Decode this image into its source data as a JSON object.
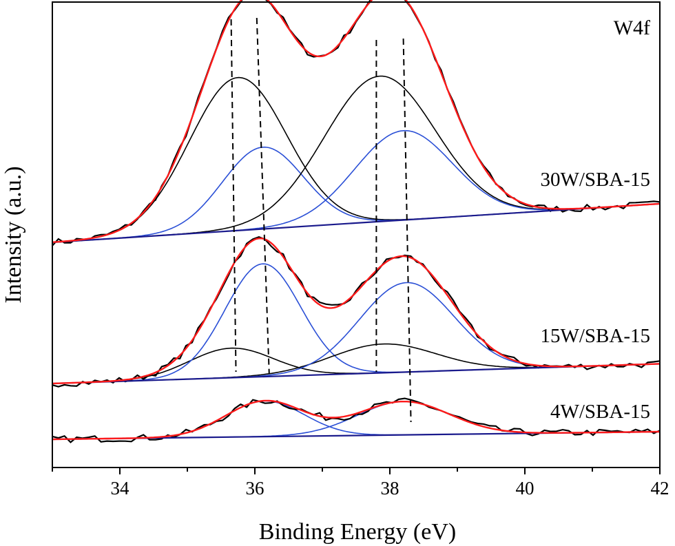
{
  "chart_data": {
    "type": "line",
    "title": "",
    "panel_label": "W4f",
    "xlabel": "Binding Energy (eV)",
    "ylabel": "Intensity (a.u.)",
    "xlim": [
      33,
      42
    ],
    "x_ticks": [
      "34",
      "36",
      "38",
      "40",
      "42"
    ],
    "x_tick_values": [
      34,
      36,
      38,
      40,
      42
    ],
    "y_ticks_shown": false,
    "grid": false,
    "legend": "none",
    "colors": {
      "data": "#000000",
      "envelope": "#ff1a1a",
      "component_a": "#000000",
      "component_b": "#2a4fd6",
      "background": "#1a1a8c",
      "dashed_guides": "#000000"
    },
    "series": [
      {
        "name": "30W/SBA-15",
        "baseline": [
          0.0,
          0.255
        ],
        "components": [
          {
            "type": "component_a",
            "center": 35.75,
            "sigma": 0.72,
            "height": 1.01
          },
          {
            "type": "component_b",
            "center": 36.12,
            "sigma": 0.6,
            "height": 0.54
          },
          {
            "type": "component_a",
            "center": 37.85,
            "sigma": 0.82,
            "height": 0.96
          },
          {
            "type": "component_b",
            "center": 38.2,
            "sigma": 0.72,
            "height": 0.59
          }
        ]
      },
      {
        "name": "15W/SBA-15",
        "baseline": [
          0.0,
          0.13
        ],
        "components": [
          {
            "type": "component_a",
            "center": 35.65,
            "sigma": 0.62,
            "height": 0.195
          },
          {
            "type": "component_b",
            "center": 36.12,
            "sigma": 0.56,
            "height": 0.745
          },
          {
            "type": "component_a",
            "center": 37.9,
            "sigma": 0.78,
            "height": 0.19
          },
          {
            "type": "component_b",
            "center": 38.25,
            "sigma": 0.7,
            "height": 0.59
          }
        ]
      },
      {
        "name": "4W/SBA-15",
        "baseline": [
          0.0,
          0.05
        ],
        "components": [
          {
            "type": "component_b",
            "center": 36.15,
            "sigma": 0.58,
            "height": 0.235
          },
          {
            "type": "component_b",
            "center": 38.2,
            "sigma": 0.68,
            "height": 0.22
          }
        ]
      }
    ],
    "dashed_guides_x": [
      35.72,
      36.1,
      37.8,
      38.2
    ]
  }
}
